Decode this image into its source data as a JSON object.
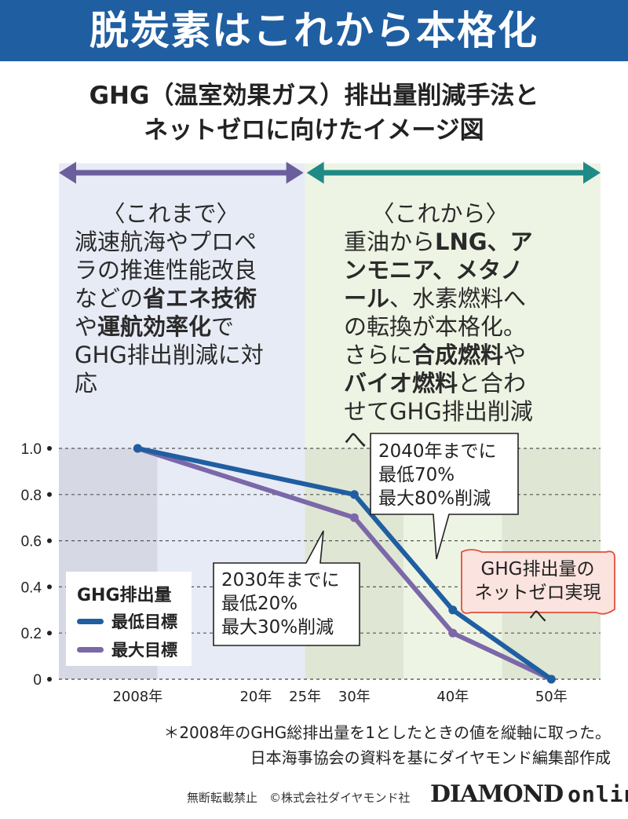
{
  "header": {
    "title": "脱炭素はこれから本格化",
    "subtitle_line1": "GHG（温室効果ガス）排出量削減手法と",
    "subtitle_line2": "ネットゼロに向けたイメージ図"
  },
  "past_section": {
    "heading": "〈これまで〉",
    "text_parts": [
      "減速航海やプロペラの推進性能改良などの",
      "省エネ技術",
      "や",
      "運航効率化",
      "でGHG排出削減に対応"
    ]
  },
  "future_section": {
    "heading": "〈これから〉",
    "text_parts": [
      "重油から",
      "LNG、アンモニア、メタノール",
      "、水素燃料への転換が本格化。さらに",
      "合成燃料",
      "や",
      "バイオ燃料",
      "と合わせてGHG排出削減へ"
    ]
  },
  "colors": {
    "banner": "#1f5ea1",
    "min_target": "#1f5ea1",
    "max_target": "#7b68a8",
    "past_bg": "#e7ebf5",
    "future_bg": "#eef4e4",
    "past_arrow": "#6b5e9c",
    "future_arrow": "#1f8a86",
    "netzero_box": "#fbe3df",
    "netzero_border": "#e0503c"
  },
  "chart_data": {
    "type": "line",
    "x": [
      2008,
      2030,
      2040,
      2050
    ],
    "x_tick_labels": [
      {
        "year": 2008,
        "label": "2008年"
      },
      {
        "year": 2020,
        "label": "20年"
      },
      {
        "year": 2025,
        "label": "25年"
      },
      {
        "year": 2030,
        "label": "30年"
      },
      {
        "year": 2040,
        "label": "40年"
      },
      {
        "year": 2050,
        "label": "50年"
      }
    ],
    "y_tick_labels": [
      "0",
      "0.2",
      "0.4",
      "0.6",
      "0.8",
      "1.0"
    ],
    "ylim": [
      0,
      1.0
    ],
    "xlim": [
      2000,
      2055
    ],
    "grid": true,
    "legend_title": "GHG排出量",
    "series": [
      {
        "name": "最低目標",
        "values": [
          1.0,
          0.8,
          0.3,
          0.0
        ]
      },
      {
        "name": "最大目標",
        "values": [
          1.0,
          0.7,
          0.2,
          0.0
        ]
      }
    ],
    "annotations": {
      "callout_2030": [
        "2030年までに",
        "最低20%",
        "最大30%削減"
      ],
      "callout_2040": [
        "2040年までに",
        "最低70%",
        "最大80%削減"
      ],
      "netzero": [
        "GHG排出量の",
        "ネットゼロ実現へ"
      ]
    }
  },
  "footnote": {
    "line1": "＊2008年のGHG総排出量を1としたときの値を縦軸に取った。",
    "line2": "日本海事協会の資料を基にダイヤモンド編集部作成"
  },
  "footer": {
    "rights": "無断転載禁止　©株式会社ダイヤモンド社",
    "brand_main": "DIAMOND",
    "brand_sub": "online"
  }
}
